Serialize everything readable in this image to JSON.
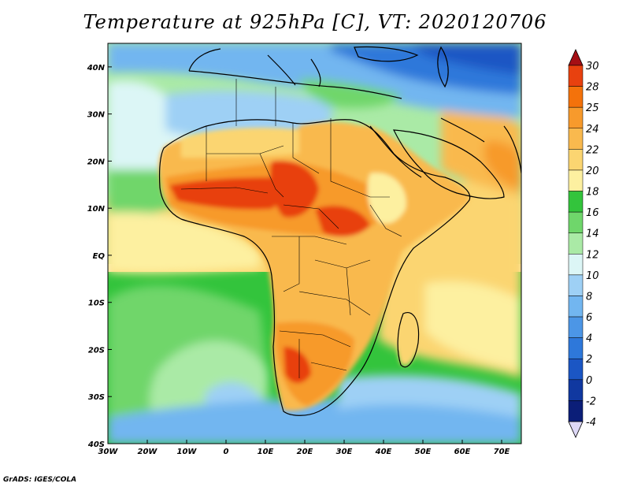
{
  "title": "Temperature at 925hPa [C], VT: 2020120706",
  "credit": "GrADS: IGES/COLA",
  "map": {
    "projection": "lat-lon",
    "lon_range": [
      -30,
      75
    ],
    "lat_range": [
      -40,
      45
    ],
    "lon_ticks": [
      {
        "value": -30,
        "label": "30W"
      },
      {
        "value": -20,
        "label": "20W"
      },
      {
        "value": -10,
        "label": "10W"
      },
      {
        "value": 0,
        "label": "0"
      },
      {
        "value": 10,
        "label": "10E"
      },
      {
        "value": 20,
        "label": "20E"
      },
      {
        "value": 30,
        "label": "30E"
      },
      {
        "value": 40,
        "label": "40E"
      },
      {
        "value": 50,
        "label": "50E"
      },
      {
        "value": 60,
        "label": "60E"
      },
      {
        "value": 70,
        "label": "70E"
      }
    ],
    "lat_ticks": [
      {
        "value": 40,
        "label": "40N"
      },
      {
        "value": 30,
        "label": "30N"
      },
      {
        "value": 20,
        "label": "20N"
      },
      {
        "value": 10,
        "label": "10N"
      },
      {
        "value": 0,
        "label": "EQ"
      },
      {
        "value": -10,
        "label": "10S"
      },
      {
        "value": -20,
        "label": "20S"
      },
      {
        "value": -30,
        "label": "30S"
      },
      {
        "value": -40,
        "label": "40S"
      }
    ]
  },
  "colorbar": {
    "levels": [
      "30",
      "28",
      "25",
      "24",
      "22",
      "20",
      "18",
      "16",
      "14",
      "12",
      "10",
      "8",
      "6",
      "4",
      "2",
      "0",
      "-2",
      "-4"
    ],
    "colors": [
      "#a50f15",
      "#e8410f",
      "#f4720b",
      "#f79a2c",
      "#f9b94e",
      "#fbd571",
      "#fdf0a0",
      "#33c43c",
      "#6fd66b",
      "#aaeaa6",
      "#dcf6f6",
      "#9ed0f5",
      "#72b6f0",
      "#4c96e6",
      "#2e78da",
      "#1b56c4",
      "#1038a0",
      "#0b1e78",
      "#ddd8f6"
    ]
  },
  "palette": {
    "ocean_north": "#aaeaa6",
    "ocean_south": "#33c43c",
    "desert_north": "#fbd571",
    "sahel": "#f79a2c",
    "hot_core": "#e8410f",
    "central_africa": "#f9b94e",
    "southern_africa": "#f79a2c",
    "europe": "#72b6f0",
    "cold_north": "#1b56c4",
    "arabian_sea": "#fdf0a0",
    "south_atlantic_cool": "#9ed0f5"
  }
}
